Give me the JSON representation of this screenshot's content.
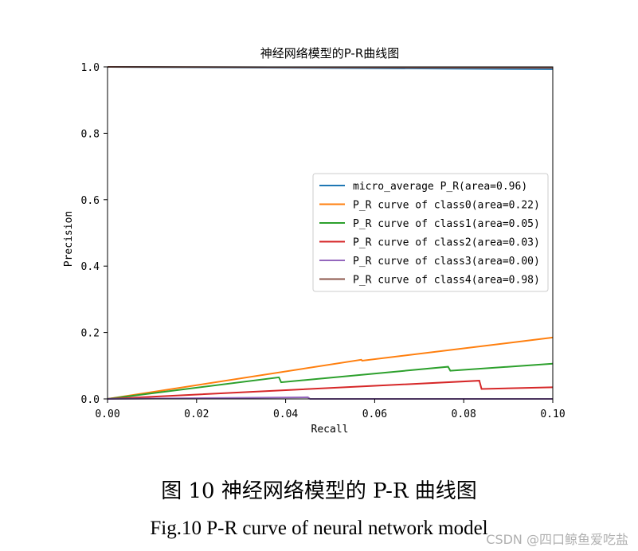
{
  "chart_data": {
    "type": "line",
    "title": "神经网络模型的P-R曲线图",
    "xlabel": "Recall",
    "ylabel": "Precision",
    "xlim": [
      0.0,
      0.1
    ],
    "ylim": [
      0.0,
      1.0
    ],
    "xticks": [
      "0.00",
      "0.02",
      "0.04",
      "0.06",
      "0.08",
      "0.10"
    ],
    "yticks": [
      "0.0",
      "0.2",
      "0.4",
      "0.6",
      "0.8",
      "1.0"
    ],
    "legend_position": "center-right",
    "series": [
      {
        "name": "micro_average P_R(area=0.96)",
        "color": "#1f77b4",
        "x": [
          0,
          0.1
        ],
        "y": [
          1.0,
          0.993
        ]
      },
      {
        "name": "P_R curve of class0(area=0.22)",
        "color": "#ff7f0e",
        "x": [
          0,
          0.057,
          0.0572,
          0.1
        ],
        "y": [
          0.0,
          0.118,
          0.115,
          0.185
        ]
      },
      {
        "name": "P_R curve of class1(area=0.05)",
        "color": "#2ca02c",
        "x": [
          0,
          0.0385,
          0.039,
          0.0765,
          0.077,
          0.1
        ],
        "y": [
          0.0,
          0.065,
          0.05,
          0.097,
          0.085,
          0.106
        ]
      },
      {
        "name": "P_R curve of class2(area=0.03)",
        "color": "#d62728",
        "x": [
          0,
          0.0835,
          0.084,
          0.1
        ],
        "y": [
          0.0,
          0.055,
          0.03,
          0.035
        ]
      },
      {
        "name": "P_R curve of class3(area=0.00)",
        "color": "#9467bd",
        "x": [
          0,
          0.045,
          0.0455,
          0.1
        ],
        "y": [
          0.0,
          0.005,
          0.0,
          0.0
        ]
      },
      {
        "name": "P_R curve of class4(area=0.98)",
        "color": "#8c564b",
        "x": [
          0,
          0.1
        ],
        "y": [
          1.0,
          0.997
        ]
      }
    ]
  },
  "caption_cn": "图 10 神经网络模型的 P-R 曲线图",
  "caption_en": "Fig.10 P-R curve of neural network model",
  "watermark": "CSDN @四口鲸鱼爱吃盐"
}
